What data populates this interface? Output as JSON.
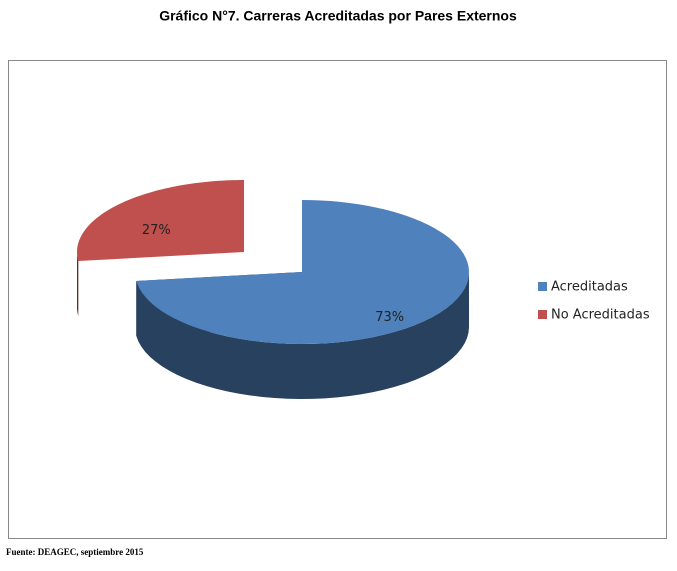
{
  "chart_data": {
    "type": "pie",
    "title": "Gráfico N°7.  Carreras Acreditadas por Pares Externos",
    "categories": [
      "Acreditadas",
      "No Acreditadas"
    ],
    "values": [
      73,
      27
    ],
    "value_labels": [
      "73%",
      "27%"
    ],
    "colors": [
      "#4f81bd",
      "#c0504d"
    ],
    "legend": "right",
    "source": "Fuente: DEAGEC, septiembre 2015"
  }
}
